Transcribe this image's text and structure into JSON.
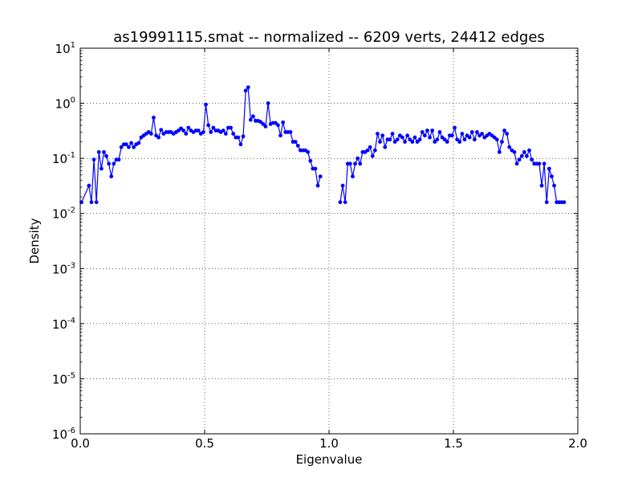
{
  "chart_data": {
    "type": "line",
    "title": "as19991115.smat -- normalized -- 6209 verts, 24412 edges",
    "xlabel": "Eigenvalue",
    "ylabel": "Density",
    "xlim": [
      0.0,
      2.0
    ],
    "ylim": [
      1e-06,
      10
    ],
    "yscale": "log",
    "grid": true,
    "x_ticks": [
      "0.0",
      "0.5",
      "1.0",
      "1.5",
      "2.0"
    ],
    "x_tick_values": [
      0.0,
      0.5,
      1.0,
      1.5,
      2.0
    ],
    "y_ticks": [
      {
        "base": "10",
        "exp": "-6",
        "value": 1e-06
      },
      {
        "base": "10",
        "exp": "-5",
        "value": 1e-05
      },
      {
        "base": "10",
        "exp": "-4",
        "value": 0.0001
      },
      {
        "base": "10",
        "exp": "-3",
        "value": 0.001
      },
      {
        "base": "10",
        "exp": "-2",
        "value": 0.01
      },
      {
        "base": "10",
        "exp": "-1",
        "value": 0.1
      },
      {
        "base": "10",
        "exp": "0",
        "value": 1
      },
      {
        "base": "10",
        "exp": "1",
        "value": 10
      }
    ],
    "series": [
      {
        "color": "#0000ff",
        "marker": "dot",
        "segments": [
          [
            [
              0.005,
              0.016
            ],
            [
              0.035,
              0.032
            ],
            [
              0.045,
              0.016
            ],
            [
              0.055,
              0.095
            ],
            [
              0.065,
              0.016
            ],
            [
              0.075,
              0.13
            ],
            [
              0.085,
              0.065
            ],
            [
              0.095,
              0.13
            ],
            [
              0.105,
              0.11
            ],
            [
              0.115,
              0.08
            ],
            [
              0.125,
              0.047
            ],
            [
              0.135,
              0.08
            ],
            [
              0.145,
              0.095
            ],
            [
              0.155,
              0.095
            ],
            [
              0.165,
              0.16
            ],
            [
              0.175,
              0.18
            ],
            [
              0.185,
              0.18
            ],
            [
              0.195,
              0.16
            ],
            [
              0.205,
              0.19
            ],
            [
              0.215,
              0.16
            ],
            [
              0.225,
              0.18
            ],
            [
              0.235,
              0.19
            ],
            [
              0.245,
              0.24
            ],
            [
              0.255,
              0.26
            ],
            [
              0.265,
              0.28
            ],
            [
              0.275,
              0.3
            ],
            [
              0.285,
              0.28
            ],
            [
              0.295,
              0.55
            ],
            [
              0.305,
              0.26
            ],
            [
              0.315,
              0.24
            ],
            [
              0.325,
              0.33
            ],
            [
              0.335,
              0.28
            ],
            [
              0.345,
              0.3
            ],
            [
              0.355,
              0.3
            ],
            [
              0.365,
              0.3
            ],
            [
              0.375,
              0.28
            ],
            [
              0.385,
              0.3
            ],
            [
              0.395,
              0.32
            ],
            [
              0.405,
              0.35
            ],
            [
              0.415,
              0.32
            ],
            [
              0.425,
              0.28
            ],
            [
              0.435,
              0.36
            ],
            [
              0.445,
              0.32
            ],
            [
              0.455,
              0.3
            ],
            [
              0.465,
              0.32
            ],
            [
              0.475,
              0.32
            ],
            [
              0.485,
              0.28
            ],
            [
              0.495,
              0.3
            ],
            [
              0.505,
              0.95
            ],
            [
              0.515,
              0.4
            ],
            [
              0.525,
              0.3
            ],
            [
              0.535,
              0.36
            ],
            [
              0.545,
              0.32
            ],
            [
              0.555,
              0.32
            ],
            [
              0.565,
              0.3
            ],
            [
              0.575,
              0.32
            ],
            [
              0.585,
              0.28
            ],
            [
              0.595,
              0.36
            ],
            [
              0.605,
              0.36
            ],
            [
              0.615,
              0.28
            ],
            [
              0.625,
              0.24
            ],
            [
              0.635,
              0.24
            ],
            [
              0.645,
              0.18
            ],
            [
              0.655,
              0.25
            ],
            [
              0.665,
              1.7
            ],
            [
              0.675,
              1.95
            ],
            [
              0.685,
              0.5
            ],
            [
              0.695,
              0.58
            ],
            [
              0.705,
              0.48
            ],
            [
              0.715,
              0.48
            ],
            [
              0.725,
              0.46
            ],
            [
              0.735,
              0.42
            ],
            [
              0.745,
              0.38
            ],
            [
              0.755,
              1.0
            ],
            [
              0.765,
              0.42
            ],
            [
              0.775,
              0.44
            ],
            [
              0.785,
              0.44
            ],
            [
              0.795,
              0.4
            ],
            [
              0.805,
              0.26
            ],
            [
              0.815,
              0.45
            ],
            [
              0.825,
              0.3
            ],
            [
              0.835,
              0.3
            ],
            [
              0.845,
              0.3
            ],
            [
              0.855,
              0.2
            ],
            [
              0.865,
              0.2
            ],
            [
              0.875,
              0.17
            ],
            [
              0.885,
              0.14
            ],
            [
              0.895,
              0.14
            ],
            [
              0.905,
              0.14
            ],
            [
              0.915,
              0.13
            ],
            [
              0.925,
              0.09
            ],
            [
              0.935,
              0.065
            ],
            [
              0.945,
              0.065
            ],
            [
              0.955,
              0.032
            ],
            [
              0.965,
              0.047
            ]
          ],
          [
            [
              1.045,
              0.016
            ],
            [
              1.055,
              0.032
            ],
            [
              1.065,
              0.016
            ],
            [
              1.075,
              0.08
            ],
            [
              1.085,
              0.08
            ],
            [
              1.095,
              0.047
            ],
            [
              1.105,
              0.08
            ],
            [
              1.115,
              0.1
            ],
            [
              1.125,
              0.08
            ],
            [
              1.135,
              0.13
            ],
            [
              1.145,
              0.13
            ],
            [
              1.155,
              0.14
            ],
            [
              1.165,
              0.16
            ],
            [
              1.175,
              0.11
            ],
            [
              1.185,
              0.14
            ],
            [
              1.195,
              0.28
            ],
            [
              1.205,
              0.2
            ],
            [
              1.215,
              0.26
            ],
            [
              1.225,
              0.16
            ],
            [
              1.235,
              0.22
            ],
            [
              1.245,
              0.22
            ],
            [
              1.255,
              0.28
            ],
            [
              1.265,
              0.2
            ],
            [
              1.275,
              0.22
            ],
            [
              1.285,
              0.26
            ],
            [
              1.295,
              0.24
            ],
            [
              1.305,
              0.2
            ],
            [
              1.315,
              0.26
            ],
            [
              1.325,
              0.22
            ],
            [
              1.335,
              0.2
            ],
            [
              1.345,
              0.24
            ],
            [
              1.355,
              0.2
            ],
            [
              1.365,
              0.22
            ],
            [
              1.375,
              0.3
            ],
            [
              1.385,
              0.26
            ],
            [
              1.395,
              0.32
            ],
            [
              1.405,
              0.24
            ],
            [
              1.415,
              0.32
            ],
            [
              1.425,
              0.2
            ],
            [
              1.435,
              0.22
            ],
            [
              1.445,
              0.3
            ],
            [
              1.455,
              0.24
            ],
            [
              1.465,
              0.22
            ],
            [
              1.475,
              0.2
            ],
            [
              1.485,
              0.26
            ],
            [
              1.495,
              0.26
            ],
            [
              1.505,
              0.36
            ],
            [
              1.515,
              0.22
            ],
            [
              1.525,
              0.2
            ],
            [
              1.535,
              0.28
            ],
            [
              1.545,
              0.22
            ],
            [
              1.555,
              0.26
            ],
            [
              1.565,
              0.24
            ],
            [
              1.575,
              0.3
            ],
            [
              1.585,
              0.22
            ],
            [
              1.595,
              0.3
            ],
            [
              1.605,
              0.26
            ],
            [
              1.615,
              0.28
            ],
            [
              1.625,
              0.24
            ],
            [
              1.635,
              0.26
            ],
            [
              1.645,
              0.28
            ],
            [
              1.655,
              0.26
            ],
            [
              1.665,
              0.24
            ],
            [
              1.675,
              0.22
            ],
            [
              1.685,
              0.13
            ],
            [
              1.695,
              0.2
            ],
            [
              1.705,
              0.32
            ],
            [
              1.715,
              0.28
            ],
            [
              1.725,
              0.16
            ],
            [
              1.735,
              0.14
            ],
            [
              1.745,
              0.13
            ],
            [
              1.755,
              0.08
            ],
            [
              1.765,
              0.095
            ],
            [
              1.775,
              0.11
            ],
            [
              1.785,
              0.13
            ],
            [
              1.795,
              0.11
            ],
            [
              1.805,
              0.14
            ],
            [
              1.815,
              0.095
            ],
            [
              1.825,
              0.08
            ],
            [
              1.835,
              0.08
            ],
            [
              1.845,
              0.08
            ],
            [
              1.855,
              0.032
            ],
            [
              1.865,
              0.08
            ],
            [
              1.875,
              0.016
            ],
            [
              1.885,
              0.065
            ],
            [
              1.895,
              0.047
            ],
            [
              1.905,
              0.032
            ],
            [
              1.915,
              0.016
            ],
            [
              1.925,
              0.016
            ],
            [
              1.935,
              0.016
            ],
            [
              1.945,
              0.016
            ]
          ]
        ]
      }
    ]
  }
}
